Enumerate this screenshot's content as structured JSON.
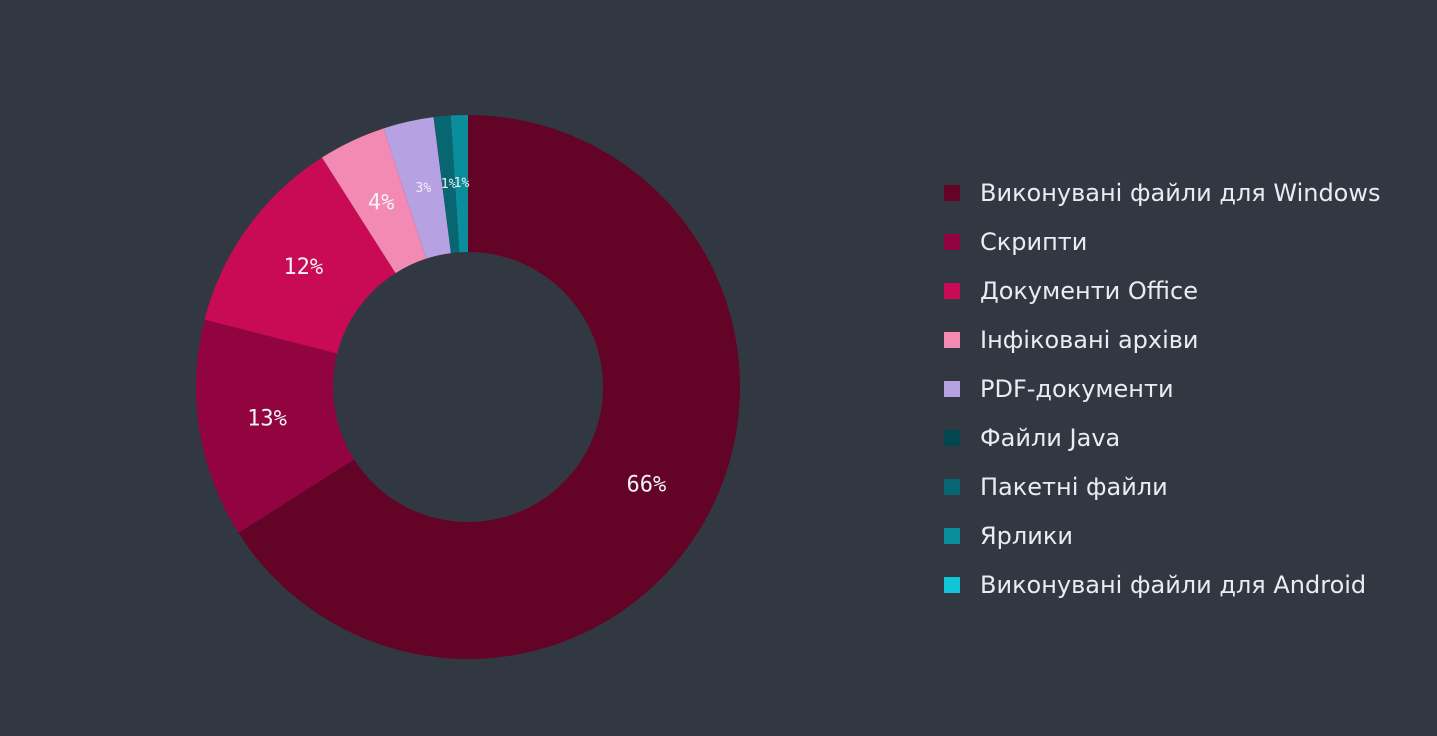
{
  "chart_data": {
    "type": "pie",
    "donut": true,
    "legend_position": "right",
    "slices": [
      {
        "name": "Виконувані файли для Windows",
        "value": 66,
        "label": "66%",
        "color": "#630326"
      },
      {
        "name": "Скрипти",
        "value": 13,
        "label": "13%",
        "color": "#92043f"
      },
      {
        "name": "Документи Office",
        "value": 12,
        "label": "12%",
        "color": "#c80b54"
      },
      {
        "name": "Інфіковані архіви",
        "value": 4,
        "label": "4%",
        "color": "#f28ab4"
      },
      {
        "name": "PDF-документи",
        "value": 3,
        "label": "3%",
        "color": "#b6a1e2"
      },
      {
        "name": "Файли Java",
        "value": 0.01,
        "label": "",
        "color": "#04464e"
      },
      {
        "name": "Пакетні файли",
        "value": 1,
        "label": "1%",
        "color": "#086672"
      },
      {
        "name": "Ярлики",
        "value": 1,
        "label": "1%",
        "color": "#0b8e9c"
      },
      {
        "name": "Виконувані файли для Android",
        "value": 0.01,
        "label": "",
        "color": "#11c4d6"
      }
    ]
  }
}
